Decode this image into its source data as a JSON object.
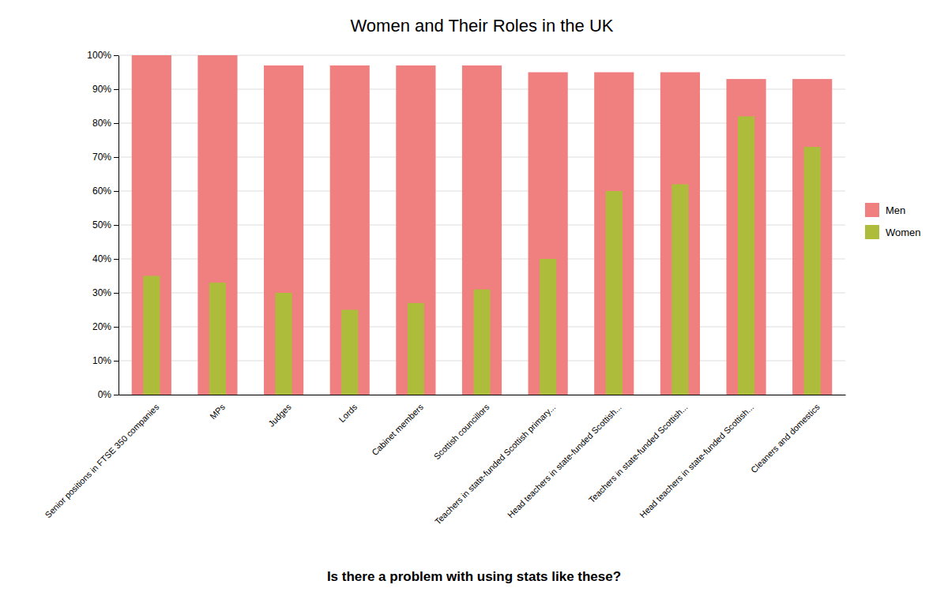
{
  "chart_data": {
    "type": "bar",
    "title": "Women and Their Roles in the UK",
    "subtitle": "Is there a problem with using stats like these?",
    "categories": [
      "Senior positions in FTSE 350 companies",
      "MPs",
      "Judges",
      "Lords",
      "Cabinet members",
      "Scottish councillors",
      "Teachers in state-funded Scottish primary...",
      "Head teachers in state-funded Scottish...",
      "Teachers in state-funded Scottish...",
      "Head teachers in state-funded Scottish...",
      "Cleaners and domestics"
    ],
    "series": [
      {
        "name": "Men",
        "color": "#F08080",
        "values": [
          100,
          100,
          97,
          97,
          97,
          97,
          95,
          95,
          95,
          93,
          93
        ]
      },
      {
        "name": "Women",
        "color": "#ADBC3A",
        "values": [
          35,
          33,
          30,
          25,
          27,
          31,
          40,
          60,
          62,
          82,
          73
        ]
      }
    ],
    "ylim": [
      0,
      100
    ],
    "yticks": [
      {
        "value": 0,
        "label": "0%"
      },
      {
        "value": 10,
        "label": "10%"
      },
      {
        "value": 20,
        "label": "20%"
      },
      {
        "value": 30,
        "label": "30%"
      },
      {
        "value": 40,
        "label": "40%"
      },
      {
        "value": 50,
        "label": "50%"
      },
      {
        "value": 60,
        "label": "60%"
      },
      {
        "value": 70,
        "label": "70%"
      },
      {
        "value": 80,
        "label": "80%"
      },
      {
        "value": 90,
        "label": "90%"
      },
      {
        "value": 100,
        "label": "100%"
      }
    ],
    "grid": true,
    "legend": "right"
  }
}
